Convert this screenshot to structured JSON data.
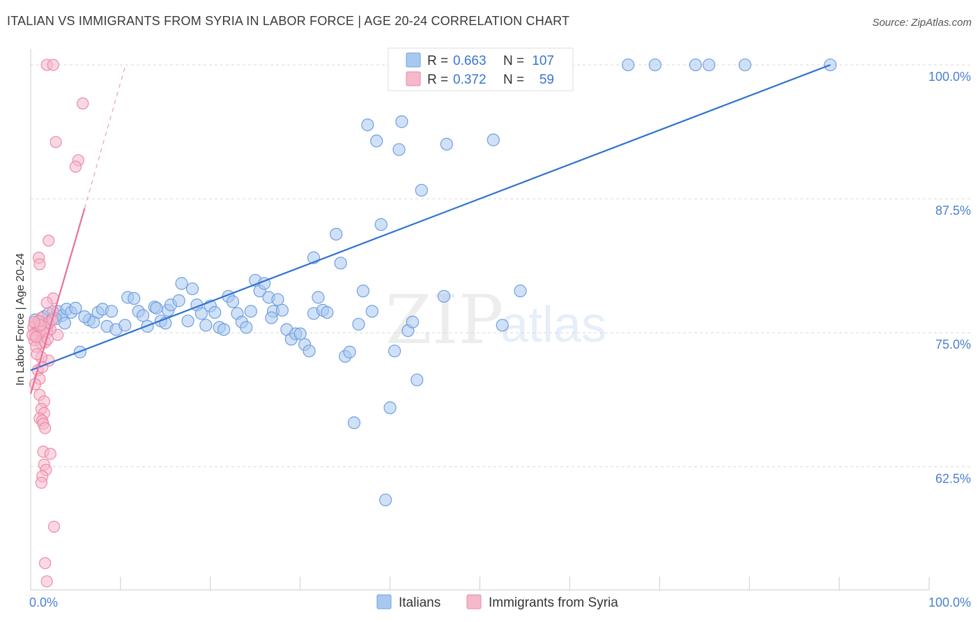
{
  "title": "ITALIAN VS IMMIGRANTS FROM SYRIA IN LABOR FORCE | AGE 20-24 CORRELATION CHART",
  "source": "Source: ZipAtlas.com",
  "watermark": {
    "zip": "ZIP",
    "atlas": "atlas"
  },
  "colors": {
    "italians_fill": "#a9c8f0",
    "italians_stroke": "#6f9fe0",
    "italians_line": "#2f72d0",
    "syria_fill": "#f6b8cb",
    "syria_stroke": "#ec8aa9",
    "syria_line": "#e8709a",
    "tick_text": "#4a7fd4",
    "grid": "#d8d8d8"
  },
  "legend": {
    "rows": [
      {
        "r_label": "R = ",
        "r_value": "0.663",
        "n_label": "N = ",
        "n_value": "107"
      },
      {
        "r_label": "R = ",
        "r_value": "0.372",
        "n_label": "N = ",
        "n_value": "59"
      }
    ]
  },
  "bottom_legend": [
    "Italians",
    "Immigrants from Syria"
  ],
  "chart_data": {
    "type": "scatter",
    "title": "ITALIAN VS IMMIGRANTS FROM SYRIA IN LABOR FORCE | AGE 20-24 CORRELATION CHART",
    "xlabel": "",
    "ylabel": "In Labor Force | Age 20-24",
    "x_tick_labels": [
      "0.0%",
      "100.0%"
    ],
    "y_tick_labels": [
      "100.0%",
      "87.5%",
      "75.0%",
      "62.5%"
    ],
    "y_ticks": [
      100.0,
      87.5,
      75.0,
      62.5
    ],
    "xlim": [
      0,
      100
    ],
    "ylim": [
      51.0,
      101.5
    ],
    "grid": true,
    "legend_placement": "top-center",
    "series": [
      {
        "name": "Italians",
        "R": 0.663,
        "N": 107,
        "trend": [
          [
            0,
            71.5
          ],
          [
            89,
            100.0
          ]
        ],
        "points": [
          [
            0.5,
            76.2
          ],
          [
            1.0,
            75.8
          ],
          [
            1.5,
            76.5
          ],
          [
            2.0,
            76.8
          ],
          [
            2.5,
            76.4
          ],
          [
            3.0,
            77.0
          ],
          [
            3.5,
            76.6
          ],
          [
            4.0,
            77.2
          ],
          [
            4.5,
            76.9
          ],
          [
            5.0,
            77.3
          ],
          [
            5.5,
            73.2
          ],
          [
            6.5,
            76.2
          ],
          [
            7.0,
            76.0
          ],
          [
            7.5,
            76.9
          ],
          [
            8.0,
            77.2
          ],
          [
            8.5,
            75.6
          ],
          [
            9.0,
            77.0
          ],
          [
            9.5,
            75.3
          ],
          [
            10.5,
            75.7
          ],
          [
            10.8,
            78.3
          ],
          [
            11.5,
            78.2
          ],
          [
            12.0,
            77.0
          ],
          [
            12.5,
            76.6
          ],
          [
            13.0,
            75.6
          ],
          [
            13.8,
            77.4
          ],
          [
            14.5,
            76.1
          ],
          [
            15.0,
            75.9
          ],
          [
            15.3,
            77.1
          ],
          [
            15.6,
            77.6
          ],
          [
            16.5,
            78.0
          ],
          [
            16.8,
            79.6
          ],
          [
            17.5,
            76.1
          ],
          [
            18.0,
            79.1
          ],
          [
            18.5,
            77.6
          ],
          [
            19.0,
            76.8
          ],
          [
            19.5,
            75.7
          ],
          [
            20.0,
            77.5
          ],
          [
            20.5,
            76.9
          ],
          [
            21.0,
            75.5
          ],
          [
            21.5,
            75.3
          ],
          [
            22.0,
            78.4
          ],
          [
            22.5,
            77.9
          ],
          [
            23.0,
            76.8
          ],
          [
            23.5,
            76.0
          ],
          [
            24.0,
            75.5
          ],
          [
            24.5,
            77.0
          ],
          [
            25.0,
            79.9
          ],
          [
            25.5,
            78.9
          ],
          [
            26.0,
            79.6
          ],
          [
            26.5,
            78.3
          ],
          [
            27.0,
            77.0
          ],
          [
            27.5,
            78.1
          ],
          [
            28.0,
            77.1
          ],
          [
            28.5,
            75.3
          ],
          [
            29.0,
            74.4
          ],
          [
            29.5,
            74.9
          ],
          [
            30.0,
            74.9
          ],
          [
            30.5,
            73.9
          ],
          [
            31.0,
            73.3
          ],
          [
            31.5,
            76.8
          ],
          [
            32.0,
            78.3
          ],
          [
            32.5,
            77.1
          ],
          [
            33.0,
            76.9
          ],
          [
            34.0,
            84.2
          ],
          [
            34.5,
            81.5
          ],
          [
            35.0,
            72.8
          ],
          [
            35.5,
            73.2
          ],
          [
            36.0,
            66.6
          ],
          [
            36.5,
            75.8
          ],
          [
            37.0,
            78.9
          ],
          [
            37.5,
            94.4
          ],
          [
            38.0,
            77.0
          ],
          [
            38.5,
            92.9
          ],
          [
            39.0,
            85.1
          ],
          [
            40.0,
            68.0
          ],
          [
            40.5,
            73.3
          ],
          [
            41.0,
            92.1
          ],
          [
            41.3,
            94.7
          ],
          [
            42.0,
            75.2
          ],
          [
            42.5,
            76.0
          ],
          [
            43.0,
            70.6
          ],
          [
            43.5,
            88.3
          ],
          [
            46.0,
            78.4
          ],
          [
            46.3,
            92.6
          ],
          [
            51.5,
            93.0
          ],
          [
            52.5,
            75.7
          ],
          [
            54.5,
            78.9
          ],
          [
            39.5,
            59.4
          ],
          [
            31.5,
            82.0
          ],
          [
            45.0,
            100.0
          ],
          [
            47.5,
            100.0
          ],
          [
            49.0,
            100.0
          ],
          [
            51.0,
            100.0
          ],
          [
            53.0,
            100.0
          ],
          [
            66.5,
            100.0
          ],
          [
            69.5,
            100.0
          ],
          [
            74.0,
            100.0
          ],
          [
            75.5,
            100.0
          ],
          [
            79.5,
            100.0
          ],
          [
            89.0,
            100.0
          ],
          [
            1.8,
            75.5
          ],
          [
            2.8,
            76.3
          ],
          [
            3.8,
            75.9
          ],
          [
            0.8,
            75.4
          ],
          [
            6.0,
            76.5
          ],
          [
            26.8,
            76.4
          ],
          [
            14.0,
            77.3
          ]
        ]
      },
      {
        "name": "Immigrants from Syria",
        "R": 0.372,
        "N": 59,
        "trend": [
          [
            0,
            69.3
          ],
          [
            6.0,
            86.6
          ]
        ],
        "trend_dashed": [
          [
            6.0,
            86.6
          ],
          [
            10.5,
            99.8
          ]
        ],
        "points": [
          [
            1.8,
            100.0
          ],
          [
            2.5,
            100.0
          ],
          [
            5.8,
            96.4
          ],
          [
            2.8,
            92.8
          ],
          [
            5.3,
            91.1
          ],
          [
            5.0,
            90.5
          ],
          [
            2.0,
            83.6
          ],
          [
            0.9,
            82.0
          ],
          [
            1.0,
            81.4
          ],
          [
            2.5,
            78.2
          ],
          [
            1.8,
            77.8
          ],
          [
            2.5,
            77.0
          ],
          [
            1.2,
            76.4
          ],
          [
            0.5,
            75.8
          ],
          [
            0.3,
            75.5
          ],
          [
            0.8,
            75.2
          ],
          [
            0.5,
            74.9
          ],
          [
            1.0,
            74.6
          ],
          [
            0.4,
            74.3
          ],
          [
            1.2,
            74.0
          ],
          [
            0.6,
            73.7
          ],
          [
            1.5,
            75.6
          ],
          [
            0.2,
            74.8
          ],
          [
            1.8,
            75.0
          ],
          [
            2.0,
            72.4
          ],
          [
            1.2,
            72.7
          ],
          [
            0.8,
            71.5
          ],
          [
            1.3,
            71.8
          ],
          [
            1.0,
            70.7
          ],
          [
            0.5,
            70.2
          ],
          [
            1.0,
            69.2
          ],
          [
            1.5,
            68.6
          ],
          [
            1.2,
            67.9
          ],
          [
            1.5,
            67.5
          ],
          [
            1.0,
            67.0
          ],
          [
            1.3,
            66.8
          ],
          [
            1.4,
            66.5
          ],
          [
            1.6,
            66.1
          ],
          [
            1.4,
            63.9
          ],
          [
            2.2,
            63.7
          ],
          [
            1.5,
            62.7
          ],
          [
            1.7,
            62.2
          ],
          [
            1.3,
            61.6
          ],
          [
            1.2,
            61.0
          ],
          [
            2.6,
            56.9
          ],
          [
            1.6,
            53.5
          ],
          [
            1.8,
            51.8
          ],
          [
            3.0,
            74.8
          ],
          [
            2.2,
            75.3
          ],
          [
            0.7,
            73.0
          ],
          [
            1.6,
            74.1
          ],
          [
            2.0,
            75.9
          ],
          [
            0.9,
            76.1
          ],
          [
            1.4,
            75.1
          ],
          [
            2.4,
            76.2
          ],
          [
            0.6,
            74.6
          ],
          [
            1.9,
            74.4
          ],
          [
            1.1,
            75.7
          ],
          [
            0.4,
            76.0
          ]
        ]
      }
    ]
  }
}
